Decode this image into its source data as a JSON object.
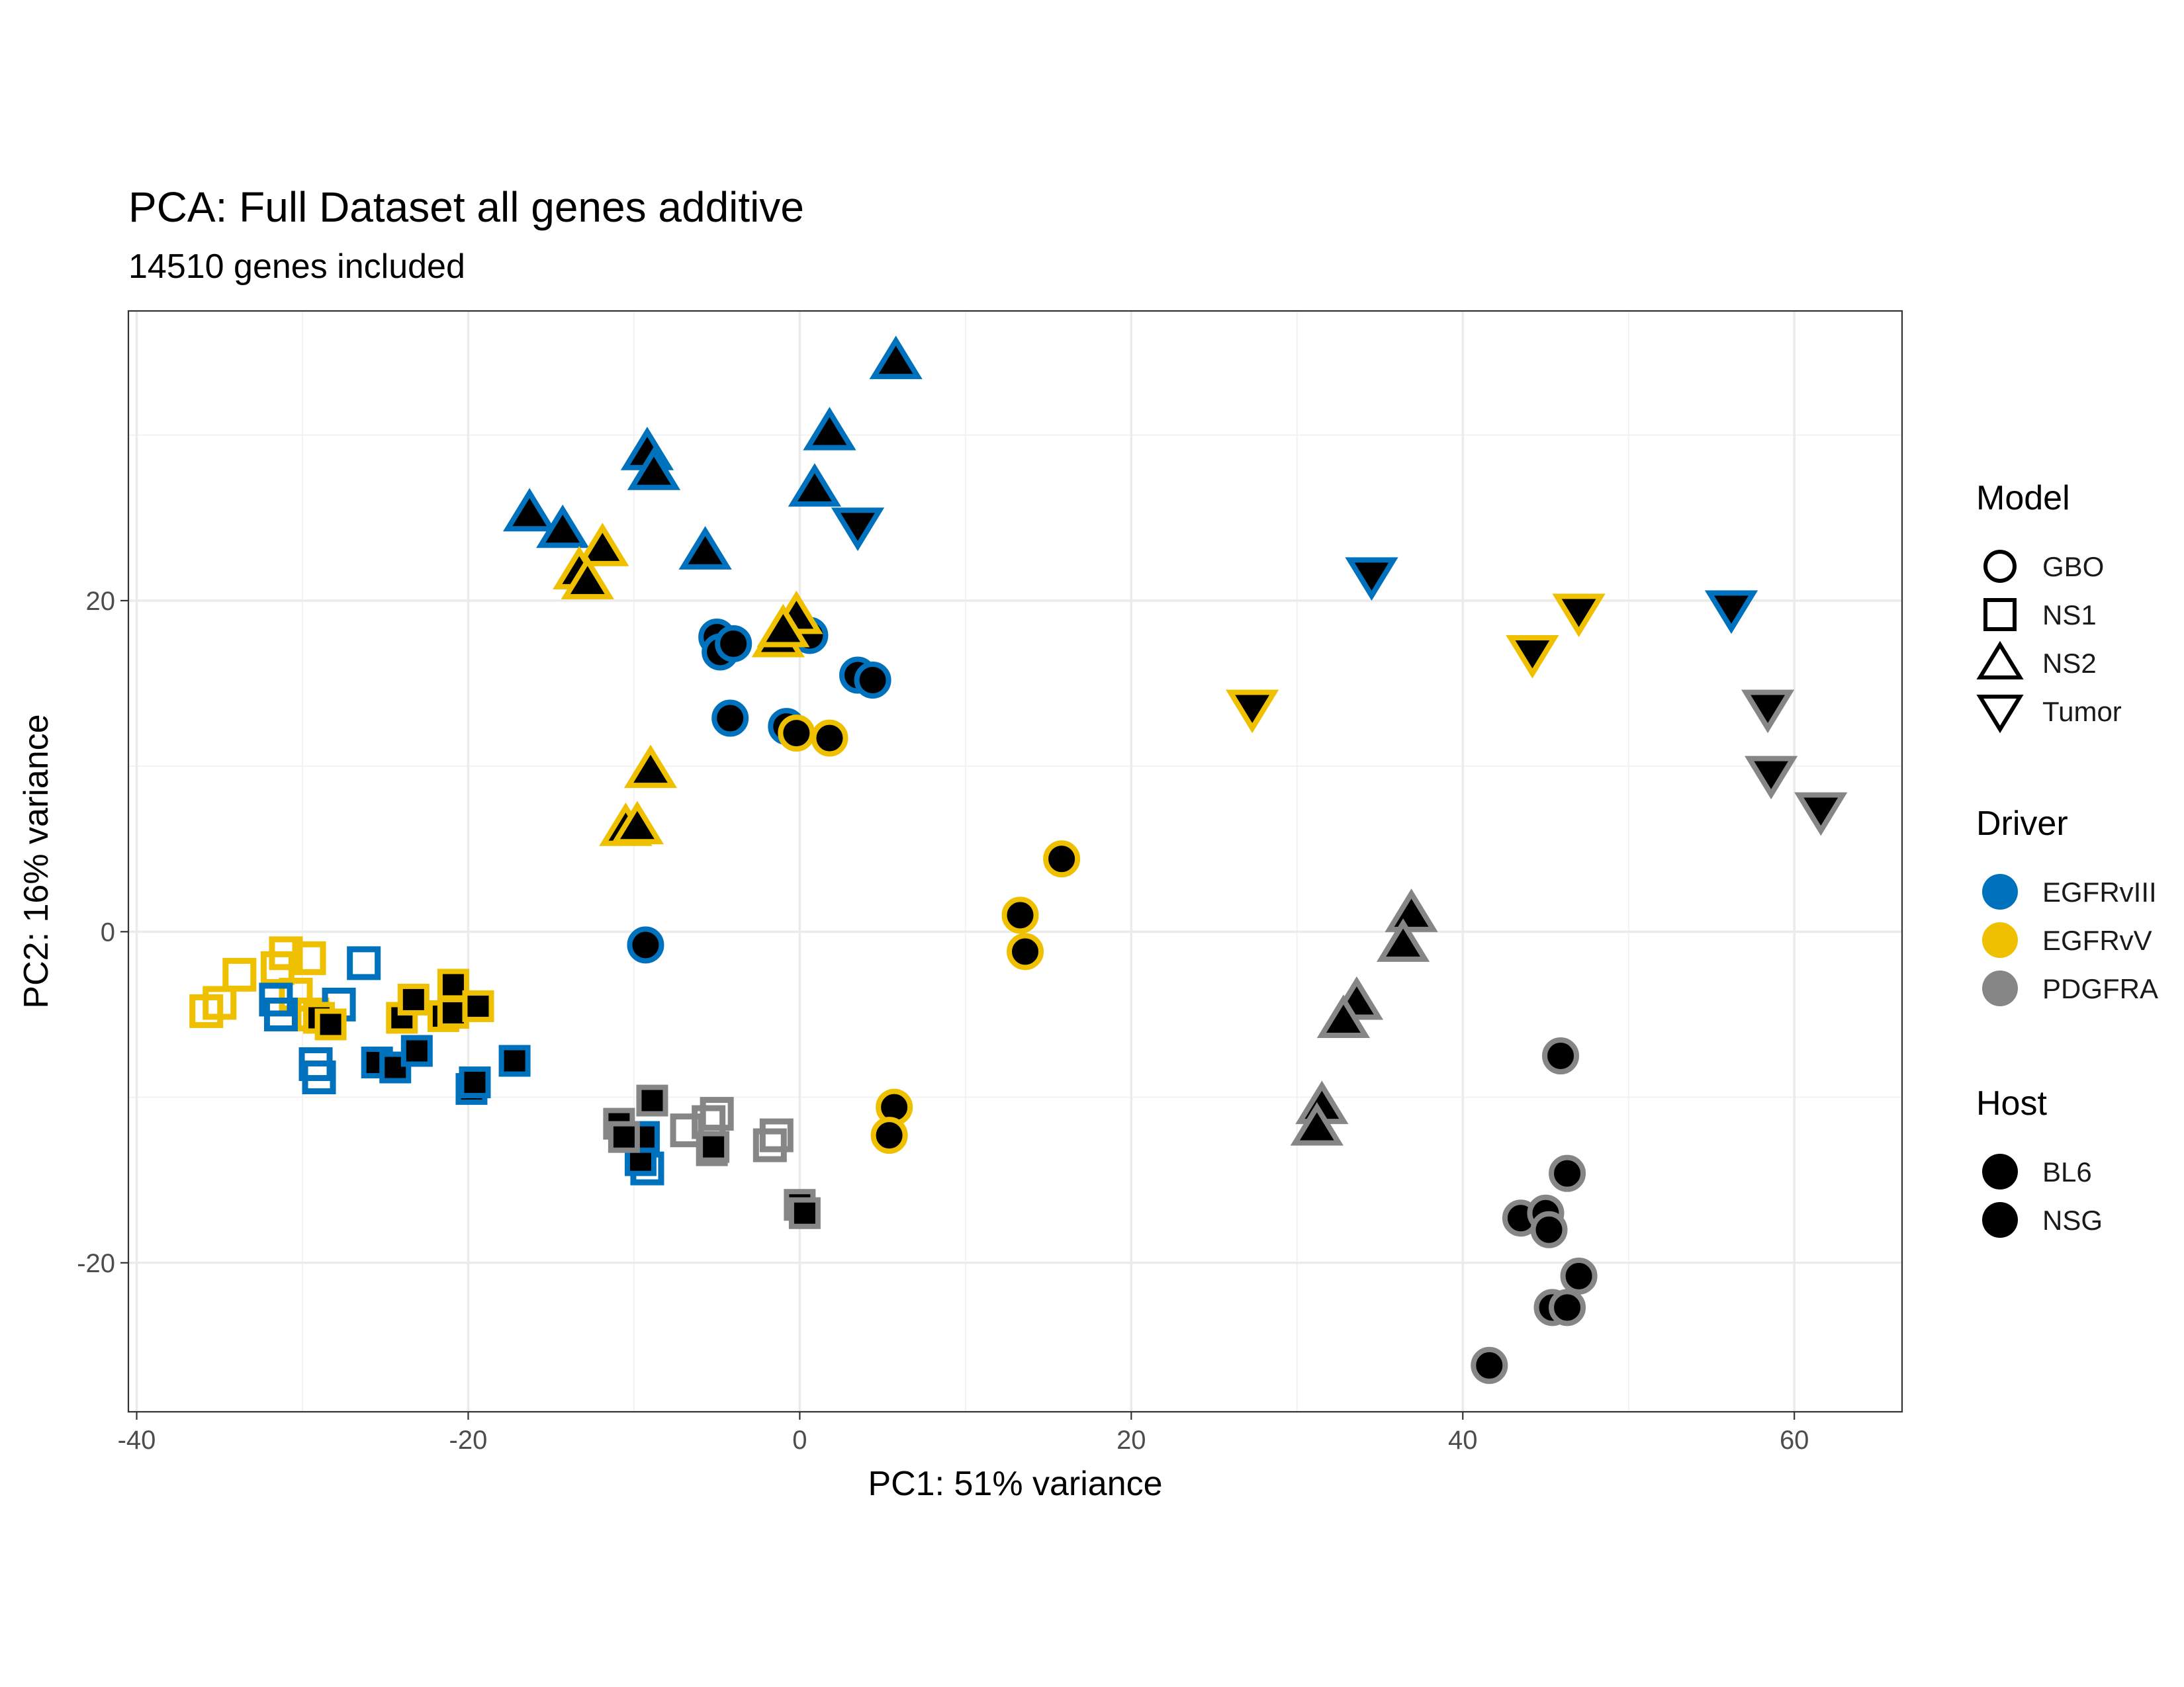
{
  "chart_data": {
    "type": "scatter",
    "title": "PCA: Full Dataset all genes additive",
    "subtitle": "14510 genes included",
    "xlabel": "PC1: 51% variance",
    "ylabel": "PC2: 16% variance",
    "xlim": [
      -40.5,
      66.5
    ],
    "ylim": [
      -29,
      37.5
    ],
    "x_ticks": [
      -40,
      -20,
      0,
      20,
      40,
      60
    ],
    "x_tick_labels": [
      "-40",
      "-20",
      "0",
      "20",
      "40",
      "60"
    ],
    "y_ticks": [
      -20,
      0,
      20
    ],
    "y_tick_labels": [
      "-20",
      "0",
      "20"
    ],
    "grid": true,
    "legend_position": "right",
    "legends": [
      {
        "title": "Model",
        "kind": "shape",
        "items": [
          {
            "label": "GBO",
            "shape": "circle"
          },
          {
            "label": "NS1",
            "shape": "square"
          },
          {
            "label": "NS2",
            "shape": "triangle-up"
          },
          {
            "label": "Tumor",
            "shape": "triangle-down"
          }
        ]
      },
      {
        "title": "Driver",
        "kind": "color",
        "items": [
          {
            "label": "EGFRvIII",
            "color": "#0072BD"
          },
          {
            "label": "EGFRvV",
            "color": "#EFC000"
          },
          {
            "label": "PDGFRA",
            "color": "#868686"
          }
        ]
      },
      {
        "title": "Host",
        "kind": "fill",
        "items": [
          {
            "label": "BL6",
            "fill": "filled"
          },
          {
            "label": "NSG",
            "fill": "filled"
          }
        ]
      }
    ],
    "points": [
      {
        "x": 5.8,
        "y": 34.5,
        "model": "NS2",
        "driver": "EGFRvIII",
        "host": "filled"
      },
      {
        "x": 1.8,
        "y": 30.2,
        "model": "NS2",
        "driver": "EGFRvIII",
        "host": "filled"
      },
      {
        "x": -9.2,
        "y": 29.0,
        "model": "NS2",
        "driver": "EGFRvIII",
        "host": "filled"
      },
      {
        "x": -8.8,
        "y": 27.8,
        "model": "NS2",
        "driver": "EGFRvIII",
        "host": "filled"
      },
      {
        "x": 0.9,
        "y": 26.8,
        "model": "NS2",
        "driver": "EGFRvIII",
        "host": "filled"
      },
      {
        "x": -16.3,
        "y": 25.3,
        "model": "NS2",
        "driver": "EGFRvIII",
        "host": "filled"
      },
      {
        "x": -14.3,
        "y": 24.3,
        "model": "NS2",
        "driver": "EGFRvIII",
        "host": "filled"
      },
      {
        "x": -5.7,
        "y": 23.0,
        "model": "NS2",
        "driver": "EGFRvIII",
        "host": "filled"
      },
      {
        "x": 3.5,
        "y": 24.5,
        "model": "Tumor",
        "driver": "EGFRvIII",
        "host": "filled"
      },
      {
        "x": 34.5,
        "y": 21.5,
        "model": "Tumor",
        "driver": "EGFRvIII",
        "host": "filled"
      },
      {
        "x": 56.2,
        "y": 19.5,
        "model": "Tumor",
        "driver": "EGFRvIII",
        "host": "filled"
      },
      {
        "x": -5.0,
        "y": 17.8,
        "model": "GBO",
        "driver": "EGFRvIII",
        "host": "filled"
      },
      {
        "x": -4.8,
        "y": 16.9,
        "model": "GBO",
        "driver": "EGFRvIII",
        "host": "filled"
      },
      {
        "x": -4.0,
        "y": 17.4,
        "model": "GBO",
        "driver": "EGFRvIII",
        "host": "filled"
      },
      {
        "x": 0.6,
        "y": 17.9,
        "model": "GBO",
        "driver": "EGFRvIII",
        "host": "filled"
      },
      {
        "x": 3.5,
        "y": 15.5,
        "model": "GBO",
        "driver": "EGFRvIII",
        "host": "filled"
      },
      {
        "x": 4.4,
        "y": 15.2,
        "model": "GBO",
        "driver": "EGFRvIII",
        "host": "filled"
      },
      {
        "x": -4.2,
        "y": 12.9,
        "model": "GBO",
        "driver": "EGFRvIII",
        "host": "filled"
      },
      {
        "x": -0.8,
        "y": 12.4,
        "model": "GBO",
        "driver": "EGFRvIII",
        "host": "filled"
      },
      {
        "x": -9.3,
        "y": -0.8,
        "model": "GBO",
        "driver": "EGFRvIII",
        "host": "filled"
      },
      {
        "x": -11.9,
        "y": 23.2,
        "model": "NS2",
        "driver": "EGFRvV",
        "host": "filled"
      },
      {
        "x": -13.3,
        "y": 21.8,
        "model": "NS2",
        "driver": "EGFRvV",
        "host": "filled"
      },
      {
        "x": -12.8,
        "y": 21.2,
        "model": "NS2",
        "driver": "EGFRvV",
        "host": "filled"
      },
      {
        "x": -0.2,
        "y": 19.1,
        "model": "NS2",
        "driver": "EGFRvV",
        "host": "filled"
      },
      {
        "x": -1.3,
        "y": 17.7,
        "model": "NS2",
        "driver": "EGFRvV",
        "host": "filled"
      },
      {
        "x": -1.0,
        "y": 18.3,
        "model": "NS2",
        "driver": "EGFRvV",
        "host": "filled"
      },
      {
        "x": -9.0,
        "y": 9.8,
        "model": "NS2",
        "driver": "EGFRvV",
        "host": "filled"
      },
      {
        "x": -10.5,
        "y": 6.3,
        "model": "NS2",
        "driver": "EGFRvV",
        "host": "filled"
      },
      {
        "x": -9.8,
        "y": 6.4,
        "model": "NS2",
        "driver": "EGFRvV",
        "host": "filled"
      },
      {
        "x": -0.2,
        "y": 12.0,
        "model": "GBO",
        "driver": "EGFRvV",
        "host": "filled"
      },
      {
        "x": 1.8,
        "y": 11.7,
        "model": "GBO",
        "driver": "EGFRvV",
        "host": "filled"
      },
      {
        "x": 15.8,
        "y": 4.4,
        "model": "GBO",
        "driver": "EGFRvV",
        "host": "filled"
      },
      {
        "x": 13.3,
        "y": 1.0,
        "model": "GBO",
        "driver": "EGFRvV",
        "host": "filled"
      },
      {
        "x": 13.6,
        "y": -1.2,
        "model": "GBO",
        "driver": "EGFRvV",
        "host": "filled"
      },
      {
        "x": 5.7,
        "y": -10.6,
        "model": "GBO",
        "driver": "EGFRvV",
        "host": "filled"
      },
      {
        "x": 5.4,
        "y": -12.3,
        "model": "GBO",
        "driver": "EGFRvV",
        "host": "filled"
      },
      {
        "x": 27.3,
        "y": 13.5,
        "model": "Tumor",
        "driver": "EGFRvV",
        "host": "filled"
      },
      {
        "x": 44.2,
        "y": 16.8,
        "model": "Tumor",
        "driver": "EGFRvV",
        "host": "filled"
      },
      {
        "x": 47.0,
        "y": 19.3,
        "model": "Tumor",
        "driver": "EGFRvV",
        "host": "filled"
      },
      {
        "x": 58.4,
        "y": 13.5,
        "model": "Tumor",
        "driver": "PDGFRA",
        "host": "filled"
      },
      {
        "x": 58.6,
        "y": 9.5,
        "model": "Tumor",
        "driver": "PDGFRA",
        "host": "filled"
      },
      {
        "x": 61.6,
        "y": 7.3,
        "model": "Tumor",
        "driver": "PDGFRA",
        "host": "filled"
      },
      {
        "x": 36.9,
        "y": 1.1,
        "model": "NS2",
        "driver": "PDGFRA",
        "host": "filled"
      },
      {
        "x": 36.4,
        "y": -0.7,
        "model": "NS2",
        "driver": "PDGFRA",
        "host": "filled"
      },
      {
        "x": 33.6,
        "y": -4.2,
        "model": "NS2",
        "driver": "PDGFRA",
        "host": "filled"
      },
      {
        "x": 32.8,
        "y": -5.3,
        "model": "NS2",
        "driver": "PDGFRA",
        "host": "filled"
      },
      {
        "x": 31.5,
        "y": -10.5,
        "model": "NS2",
        "driver": "PDGFRA",
        "host": "filled"
      },
      {
        "x": 31.2,
        "y": -11.8,
        "model": "NS2",
        "driver": "PDGFRA",
        "host": "filled"
      },
      {
        "x": 45.9,
        "y": -7.5,
        "model": "GBO",
        "driver": "PDGFRA",
        "host": "filled"
      },
      {
        "x": 46.3,
        "y": -14.6,
        "model": "GBO",
        "driver": "PDGFRA",
        "host": "filled"
      },
      {
        "x": 43.5,
        "y": -17.3,
        "model": "GBO",
        "driver": "PDGFRA",
        "host": "filled"
      },
      {
        "x": 45.0,
        "y": -17.0,
        "model": "GBO",
        "driver": "PDGFRA",
        "host": "filled"
      },
      {
        "x": 45.2,
        "y": -18.0,
        "model": "GBO",
        "driver": "PDGFRA",
        "host": "filled"
      },
      {
        "x": 47.0,
        "y": -20.8,
        "model": "GBO",
        "driver": "PDGFRA",
        "host": "filled"
      },
      {
        "x": 45.4,
        "y": -22.7,
        "model": "GBO",
        "driver": "PDGFRA",
        "host": "filled"
      },
      {
        "x": 46.3,
        "y": -22.7,
        "model": "GBO",
        "driver": "PDGFRA",
        "host": "filled"
      },
      {
        "x": 41.6,
        "y": -26.2,
        "model": "GBO",
        "driver": "PDGFRA",
        "host": "filled"
      },
      {
        "x": -35.8,
        "y": -4.8,
        "model": "NS1",
        "driver": "EGFRvV",
        "host": "open"
      },
      {
        "x": -35.0,
        "y": -4.3,
        "model": "NS1",
        "driver": "EGFRvV",
        "host": "open"
      },
      {
        "x": -33.8,
        "y": -2.6,
        "model": "NS1",
        "driver": "EGFRvV",
        "host": "open"
      },
      {
        "x": -31.5,
        "y": -2.2,
        "model": "NS1",
        "driver": "EGFRvV",
        "host": "open"
      },
      {
        "x": -31.0,
        "y": -1.3,
        "model": "NS1",
        "driver": "EGFRvV",
        "host": "open"
      },
      {
        "x": -29.6,
        "y": -1.6,
        "model": "NS1",
        "driver": "EGFRvV",
        "host": "open"
      },
      {
        "x": -30.4,
        "y": -3.8,
        "model": "NS1",
        "driver": "EGFRvV",
        "host": "open"
      },
      {
        "x": -29.4,
        "y": -5.0,
        "model": "NS1",
        "driver": "EGFRvV",
        "host": "open"
      },
      {
        "x": -31.6,
        "y": -4.1,
        "model": "NS1",
        "driver": "EGFRvIII",
        "host": "open"
      },
      {
        "x": -31.3,
        "y": -5.0,
        "model": "NS1",
        "driver": "EGFRvIII",
        "host": "open"
      },
      {
        "x": -26.3,
        "y": -1.9,
        "model": "NS1",
        "driver": "EGFRvIII",
        "host": "open"
      },
      {
        "x": -27.8,
        "y": -4.4,
        "model": "NS1",
        "driver": "EGFRvIII",
        "host": "open"
      },
      {
        "x": -29.2,
        "y": -8.0,
        "model": "NS1",
        "driver": "EGFRvIII",
        "host": "open"
      },
      {
        "x": -29.0,
        "y": -8.8,
        "model": "NS1",
        "driver": "EGFRvIII",
        "host": "open"
      },
      {
        "x": -9.2,
        "y": -14.3,
        "model": "NS1",
        "driver": "EGFRvIII",
        "host": "open"
      },
      {
        "x": -5.5,
        "y": -11.5,
        "model": "NS1",
        "driver": "PDGFRA",
        "host": "open"
      },
      {
        "x": -5.0,
        "y": -11.0,
        "model": "NS1",
        "driver": "PDGFRA",
        "host": "open"
      },
      {
        "x": -6.8,
        "y": -12.0,
        "model": "NS1",
        "driver": "PDGFRA",
        "host": "open"
      },
      {
        "x": -1.8,
        "y": -12.9,
        "model": "NS1",
        "driver": "PDGFRA",
        "host": "open"
      },
      {
        "x": -1.4,
        "y": -12.3,
        "model": "NS1",
        "driver": "PDGFRA",
        "host": "open"
      },
      {
        "x": -29.0,
        "y": -5.2,
        "model": "NS1",
        "driver": "EGFRvV",
        "host": "filled"
      },
      {
        "x": -28.3,
        "y": -5.6,
        "model": "NS1",
        "driver": "EGFRvV",
        "host": "filled"
      },
      {
        "x": -24.0,
        "y": -5.2,
        "model": "NS1",
        "driver": "EGFRvV",
        "host": "filled"
      },
      {
        "x": -23.3,
        "y": -4.1,
        "model": "NS1",
        "driver": "EGFRvV",
        "host": "filled"
      },
      {
        "x": -21.5,
        "y": -5.1,
        "model": "NS1",
        "driver": "EGFRvV",
        "host": "filled"
      },
      {
        "x": -20.9,
        "y": -3.2,
        "model": "NS1",
        "driver": "EGFRvV",
        "host": "filled"
      },
      {
        "x": -20.9,
        "y": -4.9,
        "model": "NS1",
        "driver": "EGFRvV",
        "host": "filled"
      },
      {
        "x": -19.4,
        "y": -4.5,
        "model": "NS1",
        "driver": "EGFRvV",
        "host": "filled"
      },
      {
        "x": -25.5,
        "y": -7.9,
        "model": "NS1",
        "driver": "EGFRvIII",
        "host": "filled"
      },
      {
        "x": -24.4,
        "y": -8.2,
        "model": "NS1",
        "driver": "EGFRvIII",
        "host": "filled"
      },
      {
        "x": -23.1,
        "y": -7.2,
        "model": "NS1",
        "driver": "EGFRvIII",
        "host": "filled"
      },
      {
        "x": -19.8,
        "y": -9.5,
        "model": "NS1",
        "driver": "EGFRvIII",
        "host": "filled"
      },
      {
        "x": -19.6,
        "y": -9.1,
        "model": "NS1",
        "driver": "EGFRvIII",
        "host": "filled"
      },
      {
        "x": -17.2,
        "y": -7.8,
        "model": "NS1",
        "driver": "EGFRvIII",
        "host": "filled"
      },
      {
        "x": -9.6,
        "y": -13.8,
        "model": "NS1",
        "driver": "EGFRvIII",
        "host": "filled"
      },
      {
        "x": -9.4,
        "y": -12.4,
        "model": "NS1",
        "driver": "EGFRvIII",
        "host": "filled"
      },
      {
        "x": -10.9,
        "y": -11.6,
        "model": "NS1",
        "driver": "PDGFRA",
        "host": "filled"
      },
      {
        "x": -10.6,
        "y": -12.4,
        "model": "NS1",
        "driver": "PDGFRA",
        "host": "filled"
      },
      {
        "x": -8.9,
        "y": -10.2,
        "model": "NS1",
        "driver": "PDGFRA",
        "host": "filled"
      },
      {
        "x": -5.3,
        "y": -13.2,
        "model": "NS1",
        "driver": "PDGFRA",
        "host": "filled"
      },
      {
        "x": -5.2,
        "y": -13.0,
        "model": "NS1",
        "driver": "PDGFRA",
        "host": "filled"
      },
      {
        "x": 0.0,
        "y": -16.5,
        "model": "NS1",
        "driver": "PDGFRA",
        "host": "filled"
      },
      {
        "x": 0.3,
        "y": -17.0,
        "model": "NS1",
        "driver": "PDGFRA",
        "host": "filled"
      }
    ]
  }
}
